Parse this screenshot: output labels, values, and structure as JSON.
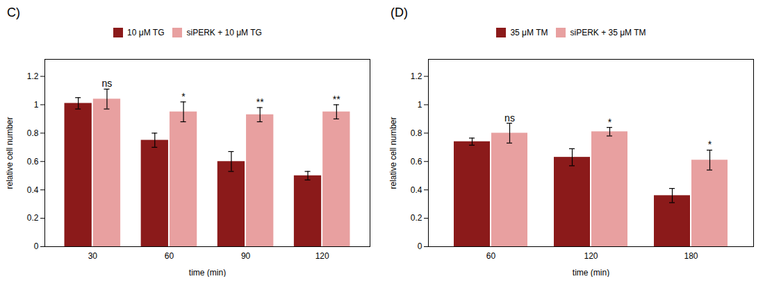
{
  "chart_data": [
    {
      "type": "bar",
      "title": "C)",
      "xlabel": "time (min)",
      "ylabel": "relative cell number",
      "categories": [
        "30",
        "60",
        "90",
        "120"
      ],
      "series": [
        {
          "name": "10 μM TG",
          "color": "#8B1A1A",
          "values": [
            1.01,
            0.75,
            0.6,
            0.5
          ],
          "errors": [
            0.04,
            0.05,
            0.07,
            0.03
          ]
        },
        {
          "name": "siPERK + 10 μM TG",
          "color": "#E8A0A0",
          "values": [
            1.04,
            0.95,
            0.93,
            0.95
          ],
          "errors": [
            0.07,
            0.07,
            0.05,
            0.05
          ]
        }
      ],
      "annotations": [
        "ns",
        "*",
        "**",
        "**"
      ],
      "ylim": [
        0,
        1.32
      ],
      "yticks": [
        0,
        0.2,
        0.4,
        0.6,
        0.8,
        1,
        1.2
      ],
      "legend": "top",
      "grid": false
    },
    {
      "type": "bar",
      "title": "(D)",
      "xlabel": "time (min)",
      "ylabel": "relative cell number",
      "categories": [
        "60",
        "120",
        "180"
      ],
      "series": [
        {
          "name": "35 μM TM",
          "color": "#8B1A1A",
          "values": [
            0.74,
            0.63,
            0.36
          ],
          "errors": [
            0.025,
            0.06,
            0.05
          ]
        },
        {
          "name": "siPERK + 35 μM TM",
          "color": "#E8A0A0",
          "values": [
            0.8,
            0.81,
            0.61
          ],
          "errors": [
            0.07,
            0.03,
            0.07
          ]
        }
      ],
      "annotations": [
        "ns",
        "*",
        "*"
      ],
      "ylim": [
        0,
        1.32
      ],
      "yticks": [
        0,
        0.2,
        0.4,
        0.6,
        0.8,
        1,
        1.2
      ],
      "legend": "top",
      "grid": false
    }
  ]
}
